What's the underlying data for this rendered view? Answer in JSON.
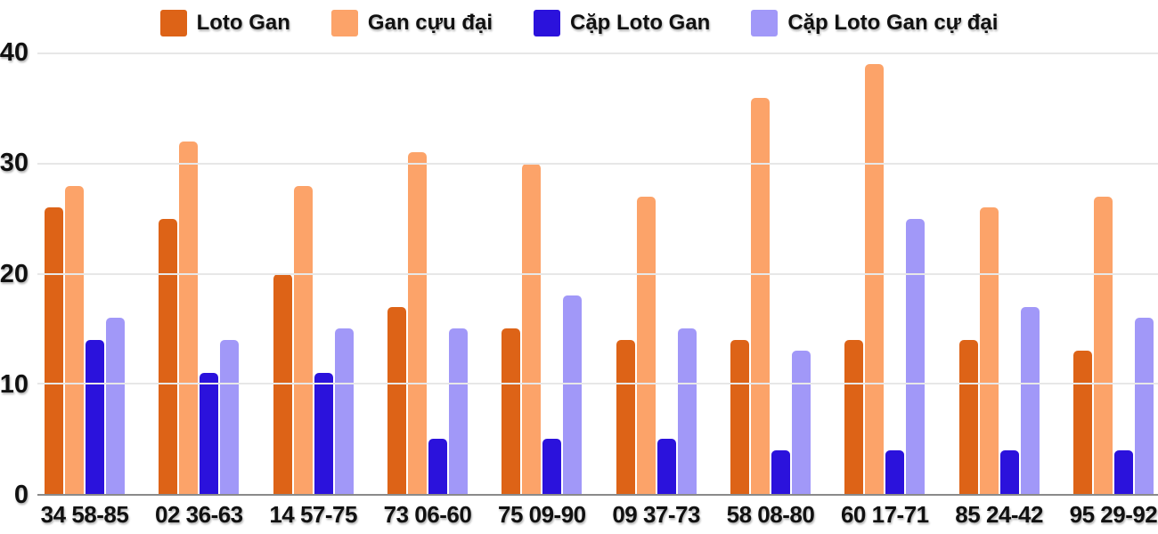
{
  "chart_data": {
    "type": "bar",
    "title": "",
    "xlabel": "",
    "ylabel": "",
    "ylim": [
      0,
      40
    ],
    "yticks": [
      0,
      10,
      20,
      30,
      40
    ],
    "grid": true,
    "legend_position": "top",
    "categories": [
      "34 58-85",
      "02 36-63",
      "14 57-75",
      "73 06-60",
      "75 09-90",
      "09 37-73",
      "58 08-80",
      "60 17-71",
      "85 24-42",
      "95 29-92"
    ],
    "series": [
      {
        "name": "Loto Gan",
        "color": "#dd6317",
        "values": [
          26,
          25,
          20,
          17,
          15,
          14,
          14,
          14,
          14,
          13
        ]
      },
      {
        "name": "Gan cựu đại",
        "color": "#fca369",
        "values": [
          28,
          32,
          28,
          31,
          30,
          27,
          36,
          39,
          26,
          27
        ]
      },
      {
        "name": "Cặp Loto Gan",
        "color": "#2b12dc",
        "values": [
          14,
          11,
          11,
          5,
          5,
          5,
          4,
          4,
          4,
          4
        ]
      },
      {
        "name": "Cặp Loto Gan cự đại",
        "color": "#a198f8",
        "values": [
          16,
          14,
          15,
          15,
          18,
          15,
          13,
          25,
          17,
          16
        ]
      }
    ],
    "axis_colors": {
      "grid": "#e7e7e7",
      "axis_line": "#8a8a8a",
      "tick_text": "#111111"
    }
  }
}
